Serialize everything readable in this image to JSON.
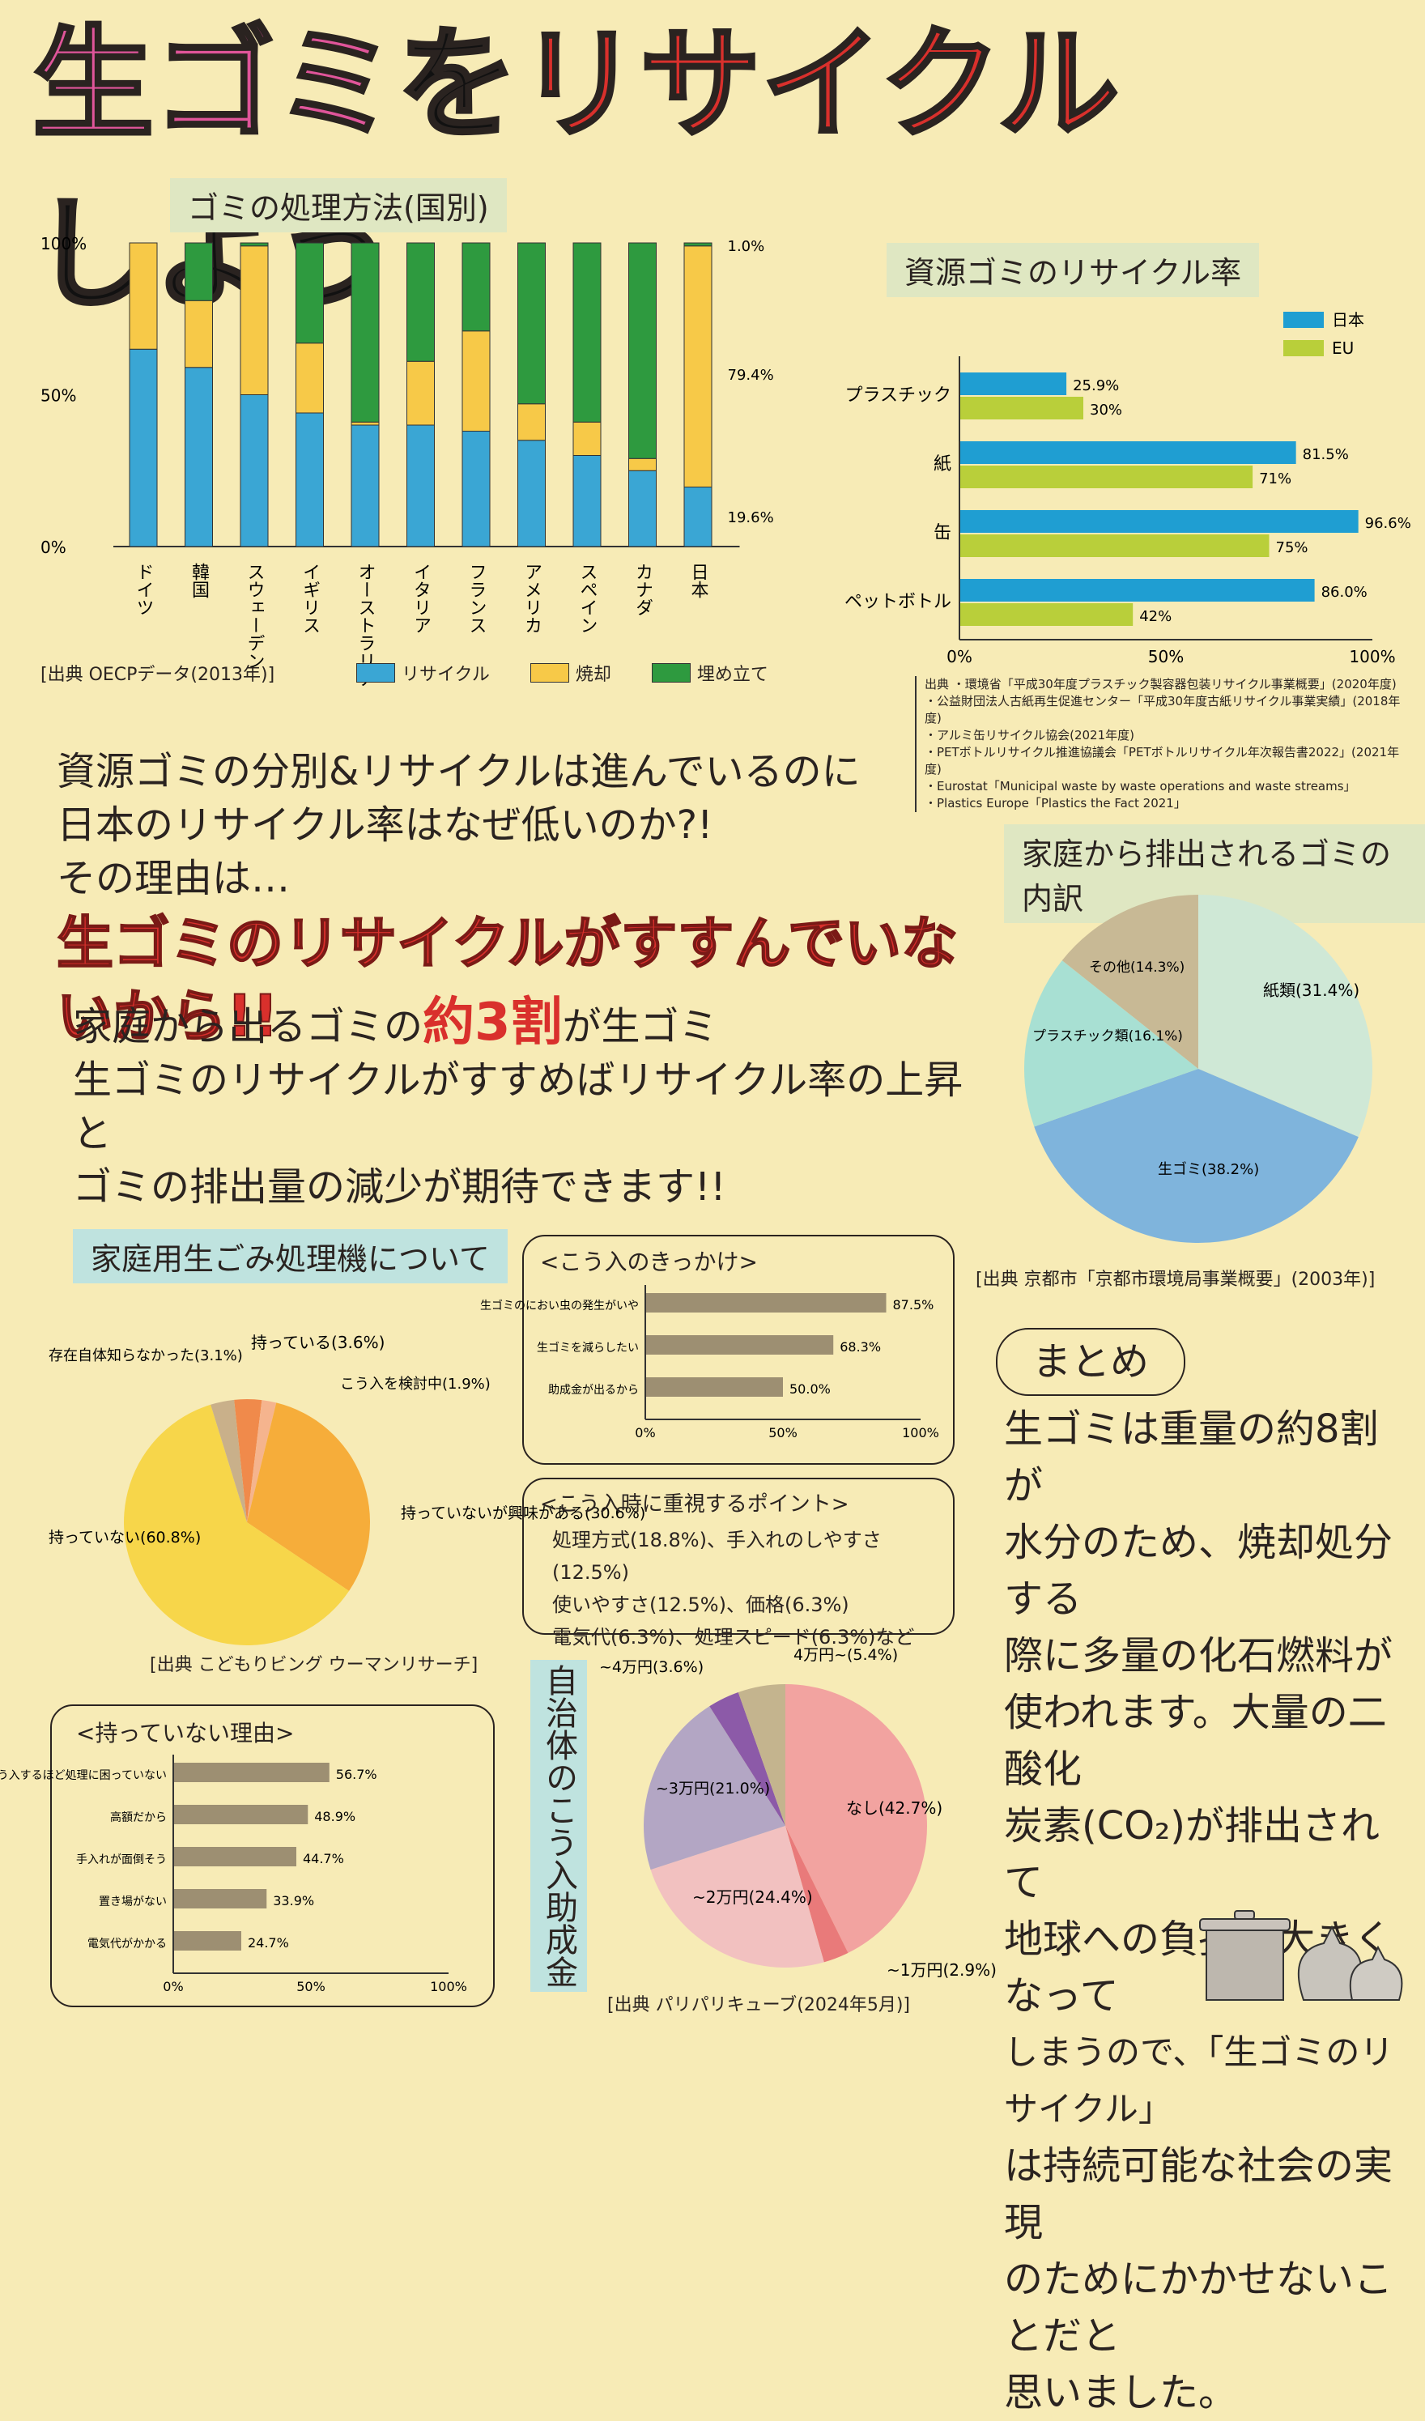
{
  "title": {
    "part1": "生ゴミ",
    "part2": "を",
    "part3": "リサイクル",
    "part4": "しよう"
  },
  "disposal_chart": {
    "label": "ゴミの処理方法(国別)",
    "y_ticks": [
      "100%",
      "50%",
      "0%"
    ],
    "right_labels": [
      "1.0%",
      "79.4%",
      "19.6%"
    ],
    "source": "[出典 OECPデータ(2013年)]",
    "legend": [
      "リサイクル",
      "焼却",
      "埋め立て"
    ],
    "colors": [
      "#3aa6d4",
      "#f7c948",
      "#2e9a3f"
    ]
  },
  "chart_data": [
    {
      "type": "bar",
      "stacked": true,
      "categories": [
        "ドイツ",
        "韓国",
        "スウェーデン",
        "イギリス",
        "オーストラリア",
        "イタリア",
        "フランス",
        "アメリカ",
        "スペイン",
        "カナダ",
        "日本"
      ],
      "series": [
        {
          "name": "リサイクル",
          "values": [
            65,
            59,
            50,
            44,
            40,
            40,
            38,
            35,
            30,
            25,
            19.6
          ]
        },
        {
          "name": "焼却",
          "values": [
            35,
            22,
            49,
            23,
            1,
            21,
            33,
            12,
            11,
            4,
            79.4
          ]
        },
        {
          "name": "埋め立て",
          "values": [
            0,
            19,
            1,
            33,
            59,
            39,
            29,
            53,
            59,
            71,
            1.0
          ]
        }
      ],
      "ylim": [
        0,
        100
      ],
      "legend_position": "bottom"
    },
    {
      "type": "bar",
      "orientation": "horizontal",
      "categories": [
        "プラスチック",
        "紙",
        "缶",
        "ペットボトル"
      ],
      "series": [
        {
          "name": "日本",
          "values": [
            25.9,
            81.5,
            96.6,
            86.0
          ]
        },
        {
          "name": "EU",
          "values": [
            30,
            71,
            75,
            42
          ]
        }
      ],
      "value_labels": [
        [
          "25.9%",
          "81.5%",
          "96.6%",
          "86.0%"
        ],
        [
          "30%",
          "71%",
          "75%",
          "42%"
        ]
      ],
      "xlim": [
        0,
        100
      ],
      "x_ticks": [
        "0%",
        "50%",
        "100%"
      ],
      "legend_position": "top-right"
    },
    {
      "type": "pie",
      "labels": [
        "紙類(31.4%)",
        "生ゴミ(38.2%)",
        "プラスチック類(16.1%)",
        "その他(14.3%)"
      ],
      "values": [
        31.4,
        38.2,
        16.1,
        14.3
      ]
    },
    {
      "type": "pie",
      "labels": [
        "持っている(3.6%)",
        "こう入を検討中(1.9%)",
        "持っていないが興味がある(30.6%)",
        "持っていない(60.8%)",
        "存在自体知らなかった(3.1%)"
      ],
      "values": [
        3.6,
        1.9,
        30.6,
        60.8,
        3.1
      ]
    },
    {
      "type": "bar",
      "orientation": "horizontal",
      "categories": [
        "生ゴミのにおい虫の発生がいや",
        "生ゴミを減らしたい",
        "助成金が出るから"
      ],
      "values": [
        87.5,
        68.3,
        50.0
      ],
      "value_labels": [
        "87.5%",
        "68.3%",
        "50.0%"
      ],
      "xlim": [
        0,
        100
      ],
      "x_ticks": [
        "0%",
        "50%",
        "100%"
      ]
    },
    {
      "type": "bar",
      "orientation": "horizontal",
      "categories": [
        "こう入するほど処理に困っていない",
        "高額だから",
        "手入れが面倒そう",
        "置き場がない",
        "電気代がかかる"
      ],
      "values": [
        56.7,
        48.9,
        44.7,
        33.9,
        24.7
      ],
      "value_labels": [
        "56.7%",
        "48.9%",
        "44.7%",
        "33.9%",
        "24.7%"
      ],
      "xlim": [
        0,
        100
      ],
      "x_ticks": [
        "0%",
        "50%",
        "100%"
      ]
    },
    {
      "type": "pie",
      "labels": [
        "なし(42.7%)",
        "~1万円(2.9%)",
        "~2万円(24.4%)",
        "~3万円(21.0%)",
        "~4万円(3.6%)",
        "4万円~(5.4%)"
      ],
      "values": [
        42.7,
        2.9,
        24.4,
        21.0,
        3.6,
        5.4
      ]
    }
  ],
  "recycle_rate": {
    "label": "資源ゴミのリサイクル率",
    "legend": [
      "日本",
      "EU"
    ],
    "colors": [
      "#1f9ed2",
      "#b9cf3a"
    ],
    "sources": [
      "出典 ・環境省「平成30年度プラスチック製容器包装リサイクル事業概要」(2020年度)",
      "・公益財団法人古紙再生促進センター「平成30年度古紙リサイクル事業実績」(2018年度)",
      "・アルミ缶リサイクル協会(2021年度)",
      "・PETボトルリサイクル推進協議会「PETボトルリサイクル年次報告書2022」(2021年度)",
      "・Eurostat「Municipal waste by waste operations and waste streams」",
      "・Plastics Europe「Plastics the Fact 2021」"
    ]
  },
  "middle": {
    "line1": "資源ゴミの分別&リサイクルは進んでいるのに",
    "line2": "日本のリサイクル率はなぜ低いのか?!",
    "line3": "その理由は…",
    "headline": "生ゴミのリサイクルがすすんでいないから!!",
    "line4a": "家庭から出るゴミの",
    "line4b": "約3割",
    "line4c": "が生ゴミ",
    "line5": "生ゴミのリサイクルがすすめばリサイクル率の上昇と",
    "line6": "ゴミの排出量の減少が期待できます!!"
  },
  "household_pie": {
    "label": "家庭から排出されるゴミの内訳",
    "colors": [
      "#cfe8d6",
      "#7fb4dc",
      "#a8e0d3",
      "#c8b995"
    ],
    "source": "[出典 京都市「京都市環境局事業概要」(2003年)]"
  },
  "processor": {
    "label": "家庭用生ごみ処理機について",
    "pie_colors": [
      "#f08a4b",
      "#f5b48e",
      "#f6ad3a",
      "#f7d64a",
      "#c9b08a"
    ],
    "source": "[出典 こどもりビング ウーマンリサーチ]",
    "reason_box_title": "<こう入のきっかけ>",
    "reason_ticks": [
      "0%",
      "50%",
      "100%"
    ],
    "point_title": "<こう入時に重視するポイント>",
    "point_line1": "処理方式(18.8%)、手入れのしやすさ(12.5%)",
    "point_line2": "使いやすさ(12.5%)、価格(6.3%)",
    "point_line3": "電気代(6.3%)、処理スピード(6.3%)など",
    "no_reason_title": "<持っていない理由>"
  },
  "subsidy": {
    "label": "自治体のこう入助成金",
    "colors": [
      "#f2a3a0",
      "#e97a7a",
      "#f2c1c0",
      "#b3a6c4",
      "#8c5aa8",
      "#c4b48e"
    ],
    "source": "[出典 パリパリキューブ(2024年5月)]"
  },
  "summary": {
    "title": "まとめ",
    "lines": [
      "生ゴミは重量の約8割が",
      "水分のため、焼却処分する",
      "際に多量の化石燃料が",
      "使われます。大量の二酸化",
      "炭素(CO₂)が排出されて",
      "地球への負担が大きくなって",
      "しまうので、「生ゴミのリサイクル」",
      "は持続可能な社会の実現",
      "のためにかかせないことだと",
      "思いました。"
    ]
  }
}
